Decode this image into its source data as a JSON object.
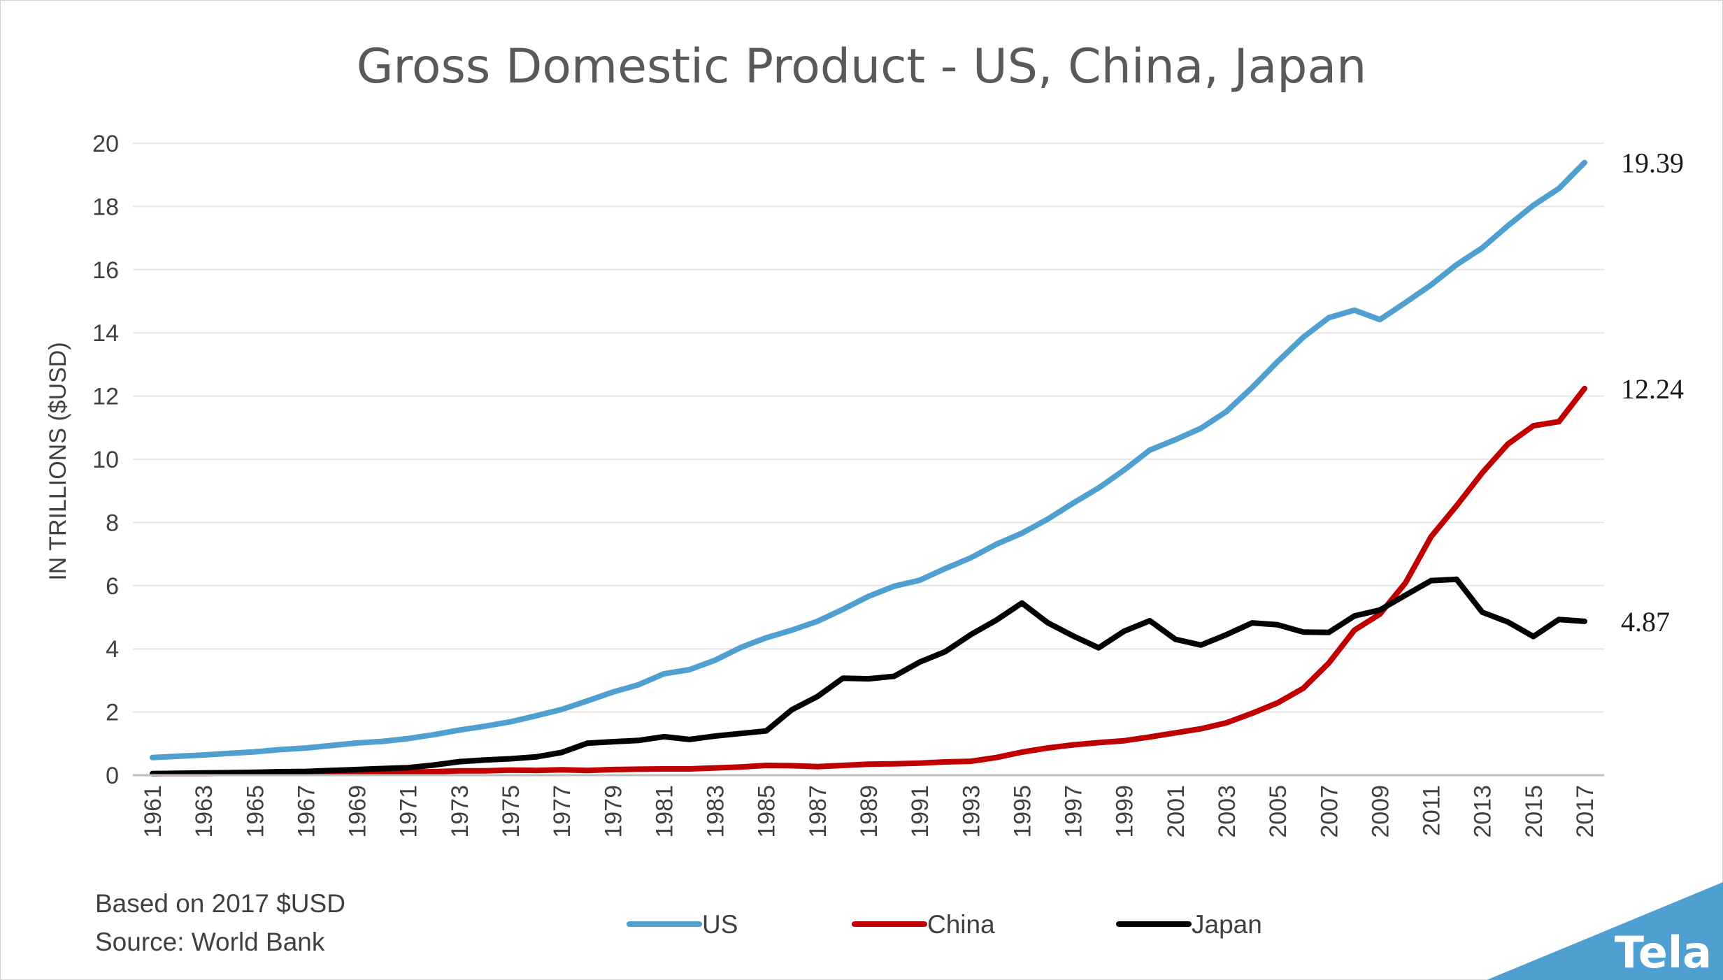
{
  "chart_data": {
    "type": "line",
    "title": "Gross Domestic Product - US, China, Japan",
    "xlabel": "",
    "ylabel": "IN TRILLIONS ($USD)",
    "ylim": [
      0,
      20
    ],
    "yticks": [
      0,
      2,
      4,
      6,
      8,
      10,
      12,
      14,
      16,
      18,
      20
    ],
    "grid": true,
    "legend_placement": "bottom",
    "x": [
      1961,
      1962,
      1963,
      1964,
      1965,
      1966,
      1967,
      1968,
      1969,
      1970,
      1971,
      1972,
      1973,
      1974,
      1975,
      1976,
      1977,
      1978,
      1979,
      1980,
      1981,
      1982,
      1983,
      1984,
      1985,
      1986,
      1987,
      1988,
      1989,
      1990,
      1991,
      1992,
      1993,
      1994,
      1995,
      1996,
      1997,
      1998,
      1999,
      2000,
      2001,
      2002,
      2003,
      2004,
      2005,
      2006,
      2007,
      2008,
      2009,
      2010,
      2011,
      2012,
      2013,
      2014,
      2015,
      2016,
      2017
    ],
    "xtick_labels": [
      "1961",
      "1963",
      "1965",
      "1967",
      "1969",
      "1971",
      "1973",
      "1975",
      "1977",
      "1979",
      "1981",
      "1983",
      "1985",
      "1987",
      "1989",
      "1991",
      "1993",
      "1995",
      "1997",
      "1999",
      "2001",
      "2003",
      "2005",
      "2007",
      "2009",
      "2011",
      "2013",
      "2015",
      "2017"
    ],
    "series": [
      {
        "name": "US",
        "color": "#4f9fd1",
        "values": [
          0.56,
          0.6,
          0.64,
          0.69,
          0.74,
          0.81,
          0.86,
          0.94,
          1.02,
          1.07,
          1.16,
          1.28,
          1.43,
          1.55,
          1.69,
          1.88,
          2.08,
          2.35,
          2.63,
          2.86,
          3.21,
          3.34,
          3.64,
          4.04,
          4.35,
          4.59,
          4.87,
          5.25,
          5.66,
          5.98,
          6.17,
          6.54,
          6.88,
          7.31,
          7.66,
          8.1,
          8.61,
          9.09,
          9.66,
          10.29,
          10.62,
          10.98,
          11.51,
          12.27,
          13.09,
          13.86,
          14.48,
          14.72,
          14.42,
          14.96,
          15.52,
          16.16,
          16.69,
          17.39,
          18.04,
          18.57,
          19.39
        ]
      },
      {
        "name": "China",
        "color": "#c00000",
        "values": [
          0.05,
          0.05,
          0.05,
          0.06,
          0.07,
          0.08,
          0.07,
          0.07,
          0.08,
          0.09,
          0.1,
          0.11,
          0.14,
          0.14,
          0.16,
          0.15,
          0.17,
          0.15,
          0.18,
          0.19,
          0.2,
          0.2,
          0.23,
          0.26,
          0.31,
          0.3,
          0.27,
          0.31,
          0.35,
          0.36,
          0.38,
          0.42,
          0.44,
          0.56,
          0.73,
          0.86,
          0.96,
          1.03,
          1.09,
          1.21,
          1.34,
          1.47,
          1.66,
          1.96,
          2.29,
          2.75,
          3.55,
          4.59,
          5.1,
          6.09,
          7.55,
          8.53,
          9.57,
          10.48,
          11.06,
          11.19,
          12.24
        ]
      },
      {
        "name": "Japan",
        "color": "#000000",
        "values": [
          0.05,
          0.06,
          0.07,
          0.08,
          0.09,
          0.11,
          0.12,
          0.15,
          0.18,
          0.21,
          0.24,
          0.32,
          0.43,
          0.48,
          0.52,
          0.58,
          0.72,
          1.01,
          1.06,
          1.1,
          1.22,
          1.13,
          1.24,
          1.32,
          1.4,
          2.07,
          2.49,
          3.07,
          3.05,
          3.13,
          3.58,
          3.91,
          4.45,
          4.91,
          5.45,
          4.83,
          4.41,
          4.03,
          4.56,
          4.89,
          4.3,
          4.12,
          4.45,
          4.82,
          4.76,
          4.53,
          4.52,
          5.04,
          5.23,
          5.7,
          6.16,
          6.2,
          5.16,
          4.85,
          4.39,
          4.93,
          4.87
        ]
      }
    ],
    "end_labels": [
      "19.39",
      "12.24",
      "4.87"
    ]
  },
  "notes": {
    "line1": "Based on 2017 $USD",
    "line2": "Source: World Bank"
  },
  "brand": {
    "name": "Tela",
    "color": "#4f9fd1"
  }
}
